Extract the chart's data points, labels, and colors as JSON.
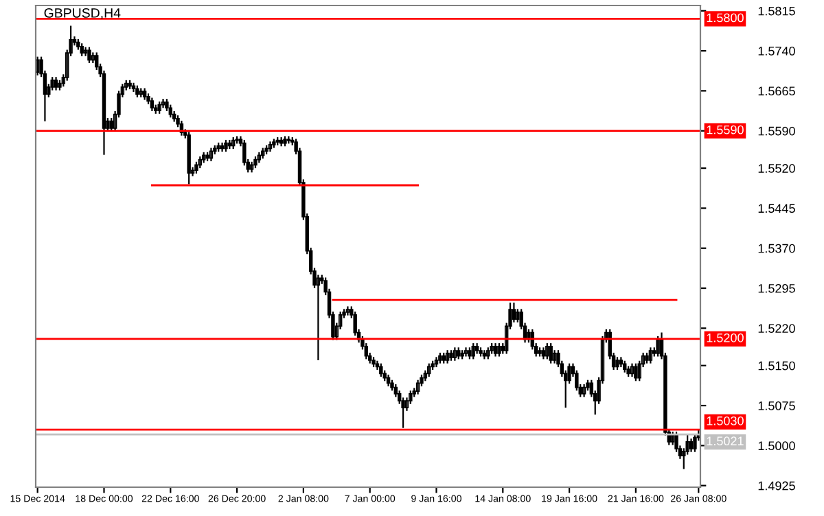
{
  "chart_data": {
    "type": "candlestick",
    "title": "GBPUSD,H4",
    "categories": [
      "15 Dec 2014",
      null,
      null,
      null,
      null,
      null,
      null,
      null,
      null,
      null,
      null,
      null,
      null,
      null,
      null,
      null,
      null,
      null,
      "18 Dec 00:00",
      null,
      null,
      null,
      null,
      null,
      null,
      null,
      null,
      null,
      null,
      null,
      null,
      null,
      null,
      null,
      null,
      null,
      "22 Dec 16:00",
      null,
      null,
      null,
      null,
      null,
      null,
      null,
      null,
      null,
      null,
      null,
      null,
      null,
      null,
      null,
      null,
      null,
      "26 Dec 20:00",
      null,
      null,
      null,
      null,
      null,
      null,
      null,
      null,
      null,
      null,
      null,
      null,
      null,
      null,
      null,
      null,
      null,
      "2 Jan 08:00",
      null,
      null,
      null,
      null,
      null,
      null,
      null,
      null,
      null,
      null,
      null,
      null,
      null,
      null,
      null,
      null,
      null,
      "7 Jan 00:00",
      null,
      null,
      null,
      null,
      null,
      null,
      null,
      null,
      null,
      null,
      null,
      null,
      null,
      null,
      null,
      null,
      null,
      "9 Jan 16:00",
      null,
      null,
      null,
      null,
      null,
      null,
      null,
      null,
      null,
      null,
      null,
      null,
      null,
      null,
      null,
      null,
      null,
      "14 Jan 08:00",
      null,
      null,
      null,
      null,
      null,
      null,
      null,
      null,
      null,
      null,
      null,
      null,
      null,
      null,
      null,
      null,
      null,
      "19 Jan 16:00",
      null,
      null,
      null,
      null,
      null,
      null,
      null,
      null,
      null,
      null,
      null,
      null,
      null,
      null,
      null,
      null,
      null,
      "21 Jan 16:00",
      null,
      null,
      null,
      null,
      null,
      null,
      null,
      null,
      null,
      null,
      null,
      null,
      null,
      null,
      null,
      null,
      "26 Jan 08:00"
    ],
    "ohlc": [
      [
        1.57,
        1.5729,
        1.5694,
        1.5723
      ],
      [
        1.5723,
        1.5729,
        1.5691,
        1.5697
      ],
      [
        1.5697,
        1.5703,
        1.5608,
        1.5659
      ],
      [
        1.5659,
        1.5678,
        1.5653,
        1.5672
      ],
      [
        1.5672,
        1.5691,
        1.5666,
        1.5685
      ],
      [
        1.5685,
        1.5691,
        1.5666,
        1.5672
      ],
      [
        1.5672,
        1.5685,
        1.5666,
        1.5679
      ],
      [
        1.5679,
        1.5696,
        1.5673,
        1.569
      ],
      [
        1.569,
        1.5742,
        1.5684,
        1.5736
      ],
      [
        1.5736,
        1.5787,
        1.573,
        1.5761
      ],
      [
        1.5761,
        1.5767,
        1.575,
        1.5756
      ],
      [
        1.5756,
        1.5762,
        1.5742,
        1.5748
      ],
      [
        1.5748,
        1.5754,
        1.573,
        1.5736
      ],
      [
        1.5736,
        1.5747,
        1.573,
        1.5741
      ],
      [
        1.5741,
        1.5747,
        1.5717,
        1.5723
      ],
      [
        1.5723,
        1.5737,
        1.5717,
        1.5731
      ],
      [
        1.5731,
        1.5737,
        1.5704,
        1.571
      ],
      [
        1.571,
        1.5716,
        1.5691,
        1.5697
      ],
      [
        1.5697,
        1.5703,
        1.5545,
        1.5595
      ],
      [
        1.5595,
        1.5614,
        1.5589,
        1.5608
      ],
      [
        1.5608,
        1.5614,
        1.5589,
        1.5595
      ],
      [
        1.5595,
        1.5627,
        1.5589,
        1.5621
      ],
      [
        1.5621,
        1.5665,
        1.5615,
        1.5659
      ],
      [
        1.5659,
        1.5678,
        1.5653,
        1.5672
      ],
      [
        1.5672,
        1.5685,
        1.5666,
        1.5679
      ],
      [
        1.5679,
        1.5685,
        1.5668,
        1.5674
      ],
      [
        1.5674,
        1.568,
        1.5663,
        1.5669
      ],
      [
        1.5669,
        1.5675,
        1.5653,
        1.5659
      ],
      [
        1.5659,
        1.567,
        1.5653,
        1.5664
      ],
      [
        1.5664,
        1.567,
        1.5648,
        1.5654
      ],
      [
        1.5654,
        1.566,
        1.564,
        1.5646
      ],
      [
        1.5646,
        1.5652,
        1.5627,
        1.5633
      ],
      [
        1.5633,
        1.5639,
        1.5622,
        1.5628
      ],
      [
        1.5628,
        1.5645,
        1.5622,
        1.5639
      ],
      [
        1.5639,
        1.565,
        1.5633,
        1.5644
      ],
      [
        1.5644,
        1.565,
        1.5627,
        1.5633
      ],
      [
        1.5633,
        1.5639,
        1.5615,
        1.5621
      ],
      [
        1.5621,
        1.5627,
        1.5607,
        1.5613
      ],
      [
        1.5613,
        1.5619,
        1.5597,
        1.5603
      ],
      [
        1.5603,
        1.5609,
        1.5581,
        1.5587
      ],
      [
        1.5587,
        1.5593,
        1.5576,
        1.5582
      ],
      [
        1.5582,
        1.5588,
        1.549,
        1.5511
      ],
      [
        1.5511,
        1.5522,
        1.5505,
        1.5516
      ],
      [
        1.5516,
        1.5532,
        1.551,
        1.5526
      ],
      [
        1.5526,
        1.5542,
        1.552,
        1.5536
      ],
      [
        1.5536,
        1.555,
        1.553,
        1.5544
      ],
      [
        1.5544,
        1.555,
        1.5533,
        1.5539
      ],
      [
        1.5539,
        1.5558,
        1.5533,
        1.5552
      ],
      [
        1.5552,
        1.5563,
        1.5546,
        1.5557
      ],
      [
        1.5557,
        1.5568,
        1.5551,
        1.5562
      ],
      [
        1.5562,
        1.5568,
        1.5551,
        1.5557
      ],
      [
        1.5557,
        1.5573,
        1.5551,
        1.5567
      ],
      [
        1.5567,
        1.5573,
        1.5556,
        1.5562
      ],
      [
        1.5562,
        1.5578,
        1.5556,
        1.5572
      ],
      [
        1.5572,
        1.558,
        1.5566,
        1.5574
      ],
      [
        1.5574,
        1.558,
        1.5561,
        1.5567
      ],
      [
        1.5567,
        1.5573,
        1.5525,
        1.5531
      ],
      [
        1.5531,
        1.5537,
        1.5512,
        1.5518
      ],
      [
        1.5518,
        1.5532,
        1.5512,
        1.5526
      ],
      [
        1.5526,
        1.5542,
        1.552,
        1.5536
      ],
      [
        1.5536,
        1.555,
        1.553,
        1.5544
      ],
      [
        1.5544,
        1.5558,
        1.5538,
        1.5552
      ],
      [
        1.5552,
        1.5563,
        1.5546,
        1.5557
      ],
      [
        1.5557,
        1.557,
        1.5551,
        1.5564
      ],
      [
        1.5564,
        1.5575,
        1.5558,
        1.5569
      ],
      [
        1.5569,
        1.5578,
        1.5563,
        1.5572
      ],
      [
        1.5572,
        1.5578,
        1.5561,
        1.5567
      ],
      [
        1.5567,
        1.558,
        1.5561,
        1.5574
      ],
      [
        1.5574,
        1.558,
        1.5566,
        1.5572
      ],
      [
        1.5572,
        1.5578,
        1.5563,
        1.5569
      ],
      [
        1.5569,
        1.5575,
        1.5546,
        1.5552
      ],
      [
        1.5552,
        1.5558,
        1.5487,
        1.5493
      ],
      [
        1.5493,
        1.5499,
        1.5423,
        1.5429
      ],
      [
        1.5429,
        1.5435,
        1.5359,
        1.5365
      ],
      [
        1.5365,
        1.5371,
        1.5321,
        1.5327
      ],
      [
        1.5327,
        1.5333,
        1.5295,
        1.5301
      ],
      [
        1.5301,
        1.532,
        1.516,
        1.5314
      ],
      [
        1.5314,
        1.532,
        1.5303,
        1.5309
      ],
      [
        1.5309,
        1.5315,
        1.5282,
        1.5288
      ],
      [
        1.5288,
        1.5294,
        1.5239,
        1.5245
      ],
      [
        1.5245,
        1.5251,
        1.5198,
        1.5204
      ],
      [
        1.5204,
        1.523,
        1.5198,
        1.5224
      ],
      [
        1.5224,
        1.5251,
        1.5218,
        1.5245
      ],
      [
        1.5245,
        1.5256,
        1.5239,
        1.525
      ],
      [
        1.525,
        1.5261,
        1.5244,
        1.5255
      ],
      [
        1.5255,
        1.5261,
        1.5239,
        1.5245
      ],
      [
        1.5245,
        1.5251,
        1.5206,
        1.5212
      ],
      [
        1.5212,
        1.5218,
        1.5193,
        1.5199
      ],
      [
        1.5199,
        1.5205,
        1.518,
        1.5186
      ],
      [
        1.5186,
        1.5192,
        1.5162,
        1.5168
      ],
      [
        1.5168,
        1.5174,
        1.5154,
        1.516
      ],
      [
        1.516,
        1.5166,
        1.5147,
        1.5153
      ],
      [
        1.5153,
        1.5159,
        1.5142,
        1.5148
      ],
      [
        1.5148,
        1.5154,
        1.5129,
        1.5135
      ],
      [
        1.5135,
        1.5141,
        1.5121,
        1.5127
      ],
      [
        1.5127,
        1.5133,
        1.5111,
        1.5117
      ],
      [
        1.5117,
        1.5123,
        1.5103,
        1.5109
      ],
      [
        1.5109,
        1.5115,
        1.5091,
        1.5097
      ],
      [
        1.5097,
        1.5103,
        1.5078,
        1.5084
      ],
      [
        1.5084,
        1.509,
        1.5033,
        1.5071
      ],
      [
        1.5071,
        1.509,
        1.5065,
        1.5084
      ],
      [
        1.5084,
        1.5103,
        1.5078,
        1.5097
      ],
      [
        1.5097,
        1.5108,
        1.5091,
        1.5102
      ],
      [
        1.5102,
        1.5123,
        1.5096,
        1.5117
      ],
      [
        1.5117,
        1.5133,
        1.5111,
        1.5127
      ],
      [
        1.5127,
        1.5141,
        1.5121,
        1.5135
      ],
      [
        1.5135,
        1.5154,
        1.5129,
        1.5148
      ],
      [
        1.5148,
        1.5159,
        1.5142,
        1.5153
      ],
      [
        1.5153,
        1.5166,
        1.5147,
        1.516
      ],
      [
        1.516,
        1.5174,
        1.5154,
        1.5168
      ],
      [
        1.5168,
        1.5174,
        1.5154,
        1.516
      ],
      [
        1.516,
        1.5179,
        1.5154,
        1.5173
      ],
      [
        1.5173,
        1.5179,
        1.5159,
        1.5165
      ],
      [
        1.5165,
        1.5184,
        1.5159,
        1.5178
      ],
      [
        1.5178,
        1.5184,
        1.5162,
        1.5168
      ],
      [
        1.5168,
        1.5179,
        1.5162,
        1.5173
      ],
      [
        1.5173,
        1.5184,
        1.5167,
        1.5178
      ],
      [
        1.5178,
        1.5184,
        1.5162,
        1.5168
      ],
      [
        1.5168,
        1.5192,
        1.5162,
        1.5186
      ],
      [
        1.5186,
        1.5192,
        1.5172,
        1.5178
      ],
      [
        1.5178,
        1.5184,
        1.5167,
        1.5173
      ],
      [
        1.5173,
        1.5179,
        1.5162,
        1.5168
      ],
      [
        1.5168,
        1.5184,
        1.5162,
        1.5178
      ],
      [
        1.5178,
        1.5192,
        1.5172,
        1.5186
      ],
      [
        1.5186,
        1.5192,
        1.5167,
        1.5173
      ],
      [
        1.5173,
        1.5192,
        1.5167,
        1.5186
      ],
      [
        1.5186,
        1.5192,
        1.5172,
        1.5178
      ],
      [
        1.5178,
        1.523,
        1.5172,
        1.5224
      ],
      [
        1.5224,
        1.5268,
        1.5218,
        1.5255
      ],
      [
        1.5255,
        1.5268,
        1.5231,
        1.5237
      ],
      [
        1.5237,
        1.5256,
        1.5231,
        1.525
      ],
      [
        1.525,
        1.5256,
        1.5218,
        1.5224
      ],
      [
        1.5224,
        1.523,
        1.5193,
        1.5199
      ],
      [
        1.5199,
        1.5218,
        1.5193,
        1.5212
      ],
      [
        1.5212,
        1.5218,
        1.518,
        1.5186
      ],
      [
        1.5186,
        1.5192,
        1.5167,
        1.5173
      ],
      [
        1.5173,
        1.5184,
        1.5167,
        1.5178
      ],
      [
        1.5178,
        1.5184,
        1.5162,
        1.5168
      ],
      [
        1.5168,
        1.5192,
        1.5162,
        1.5186
      ],
      [
        1.5186,
        1.5192,
        1.5154,
        1.516
      ],
      [
        1.516,
        1.5179,
        1.5154,
        1.5173
      ],
      [
        1.5173,
        1.5179,
        1.5147,
        1.5153
      ],
      [
        1.5153,
        1.5159,
        1.5129,
        1.5135
      ],
      [
        1.5135,
        1.5141,
        1.5071,
        1.5122
      ],
      [
        1.5122,
        1.5154,
        1.5116,
        1.5148
      ],
      [
        1.5148,
        1.5154,
        1.5129,
        1.5135
      ],
      [
        1.5135,
        1.5141,
        1.5103,
        1.5109
      ],
      [
        1.5109,
        1.5115,
        1.5091,
        1.5097
      ],
      [
        1.5097,
        1.5115,
        1.5091,
        1.5109
      ],
      [
        1.5109,
        1.5123,
        1.5103,
        1.5117
      ],
      [
        1.5117,
        1.5123,
        1.5091,
        1.5097
      ],
      [
        1.5097,
        1.5103,
        1.5058,
        1.5084
      ],
      [
        1.5084,
        1.5128,
        1.5078,
        1.5122
      ],
      [
        1.5122,
        1.5205,
        1.5116,
        1.5199
      ],
      [
        1.5199,
        1.5218,
        1.5193,
        1.5212
      ],
      [
        1.5212,
        1.5218,
        1.5162,
        1.5168
      ],
      [
        1.5168,
        1.5174,
        1.5142,
        1.5148
      ],
      [
        1.5148,
        1.5166,
        1.5142,
        1.516
      ],
      [
        1.516,
        1.5166,
        1.5147,
        1.5153
      ],
      [
        1.5153,
        1.5159,
        1.5137,
        1.5143
      ],
      [
        1.5143,
        1.5149,
        1.5129,
        1.5135
      ],
      [
        1.5135,
        1.5154,
        1.5129,
        1.5148
      ],
      [
        1.5148,
        1.5154,
        1.5121,
        1.5127
      ],
      [
        1.5127,
        1.5159,
        1.5121,
        1.5153
      ],
      [
        1.5153,
        1.5174,
        1.5147,
        1.5168
      ],
      [
        1.5168,
        1.5174,
        1.5154,
        1.516
      ],
      [
        1.516,
        1.5184,
        1.5154,
        1.5178
      ],
      [
        1.5178,
        1.5184,
        1.5167,
        1.5173
      ],
      [
        1.5173,
        1.5205,
        1.5167,
        1.5199
      ],
      [
        1.5199,
        1.5212,
        1.5162,
        1.5168
      ],
      [
        1.5168,
        1.5174,
        1.5019,
        1.5025
      ],
      [
        1.5025,
        1.5031,
        1.5001,
        1.5007
      ],
      [
        1.5007,
        1.5026,
        1.5001,
        1.502
      ],
      [
        1.502,
        1.5026,
        1.4988,
        1.4994
      ],
      [
        1.4994,
        1.5,
        1.4975,
        1.4981
      ],
      [
        1.4981,
        1.4995,
        1.4956,
        1.4989
      ],
      [
        1.4989,
        1.502,
        1.4983,
        1.5007
      ],
      [
        1.5007,
        1.5013,
        1.4988,
        1.4994
      ],
      [
        1.4994,
        1.5021,
        1.4988,
        1.5015
      ],
      [
        1.5015,
        1.5031,
        1.5009,
        1.5021
      ]
    ],
    "series": [
      {
        "type": "line",
        "color": "#ff0000",
        "values": [
          null,
          null,
          null,
          null,
          null,
          null,
          null,
          null,
          null,
          null,
          null,
          null,
          null,
          null,
          null,
          null,
          null,
          null,
          null,
          null,
          null,
          null,
          null,
          null,
          null,
          null,
          null,
          null,
          null,
          null,
          null,
          1.5488,
          1.5488,
          1.5488,
          1.5488,
          1.5488,
          1.5488,
          1.5488,
          1.5488,
          1.5488,
          1.5488,
          1.5488,
          1.5488,
          1.5488,
          1.5488,
          1.5488,
          1.5488,
          1.5488,
          1.5488,
          1.5488,
          1.5488,
          1.5488,
          1.5488,
          1.5488,
          1.5488,
          1.5488,
          1.5488,
          1.5488,
          1.5488,
          1.5488,
          1.5488,
          1.5488,
          1.5488,
          1.5488,
          1.5488,
          1.5488,
          1.5488,
          1.5488,
          1.5488,
          1.5488,
          1.5488,
          1.5488,
          1.5488,
          1.5488,
          1.5488,
          1.5488,
          1.5488,
          1.5488,
          1.5488,
          1.5488,
          1.5488,
          1.5488,
          1.5488,
          1.5488,
          1.5488,
          1.5488,
          1.5488,
          1.5488,
          1.5488,
          1.5488,
          1.5488,
          1.5488,
          1.5488,
          1.5488,
          1.5488,
          1.5488,
          1.5488,
          1.5488,
          1.5488,
          1.5488,
          1.5488,
          1.5488,
          1.5488,
          1.5488,
          null,
          null,
          null,
          null,
          null,
          null,
          null,
          null,
          null,
          null,
          null,
          null,
          null,
          null,
          null,
          null,
          null,
          null,
          null,
          null,
          null,
          null,
          null,
          null,
          null,
          null,
          null,
          null,
          null,
          null,
          null,
          null,
          null,
          null,
          null,
          null,
          null,
          null,
          null,
          null,
          null,
          null,
          null,
          null,
          null,
          null,
          null,
          null,
          null,
          null,
          null,
          null,
          null,
          null,
          null,
          null,
          null,
          null,
          null,
          null,
          null,
          null,
          null,
          null,
          null,
          null,
          null,
          null,
          null,
          null,
          null,
          null,
          null,
          null,
          null,
          null
        ]
      },
      {
        "type": "line",
        "color": "#ff0000",
        "values": [
          null,
          null,
          null,
          null,
          null,
          null,
          null,
          null,
          null,
          null,
          null,
          null,
          null,
          null,
          null,
          null,
          null,
          null,
          null,
          null,
          null,
          null,
          null,
          null,
          null,
          null,
          null,
          null,
          null,
          null,
          null,
          null,
          null,
          null,
          null,
          null,
          null,
          null,
          null,
          null,
          null,
          null,
          null,
          null,
          null,
          null,
          null,
          null,
          null,
          null,
          null,
          null,
          null,
          null,
          null,
          null,
          null,
          null,
          null,
          null,
          null,
          null,
          null,
          null,
          null,
          null,
          null,
          null,
          null,
          null,
          null,
          null,
          null,
          null,
          null,
          null,
          null,
          null,
          null,
          null,
          1.5273,
          1.5273,
          1.5273,
          1.5273,
          1.5273,
          1.5273,
          1.5273,
          1.5273,
          1.5273,
          1.5273,
          1.5273,
          1.5273,
          1.5273,
          1.5273,
          1.5273,
          1.5273,
          1.5273,
          1.5273,
          1.5273,
          1.5273,
          1.5273,
          1.5273,
          1.5273,
          1.5273,
          1.5273,
          1.5273,
          1.5273,
          1.5273,
          1.5273,
          1.5273,
          1.5273,
          1.5273,
          1.5273,
          1.5273,
          1.5273,
          1.5273,
          1.5273,
          1.5273,
          1.5273,
          1.5273,
          1.5273,
          1.5273,
          1.5273,
          1.5273,
          1.5273,
          1.5273,
          1.5273,
          1.5273,
          1.5273,
          1.5273,
          1.5273,
          1.5273,
          1.5273,
          1.5273,
          1.5273,
          1.5273,
          1.5273,
          1.5273,
          1.5273,
          1.5273,
          1.5273,
          1.5273,
          1.5273,
          1.5273,
          1.5273,
          1.5273,
          1.5273,
          1.5273,
          1.5273,
          1.5273,
          1.5273,
          1.5273,
          1.5273,
          1.5273,
          1.5273,
          1.5273,
          1.5273,
          1.5273,
          1.5273,
          1.5273,
          1.5273,
          1.5273,
          1.5273,
          1.5273,
          1.5273,
          1.5273,
          1.5273,
          1.5273,
          1.5273,
          1.5273,
          1.5273,
          1.5273,
          1.5273,
          1.5273,
          null,
          null,
          null,
          null,
          null,
          null
        ]
      }
    ],
    "ylim": [
      1.4922,
      1.5825
    ],
    "yticks": [
      {
        "value": 1.4925,
        "label": "1.4925"
      },
      {
        "value": 1.5,
        "label": "1.5000"
      },
      {
        "value": 1.5075,
        "label": "1.5075"
      },
      {
        "value": 1.515,
        "label": "1.5150"
      },
      {
        "value": 1.522,
        "label": "1.5220"
      },
      {
        "value": 1.5295,
        "label": "1.5295"
      },
      {
        "value": 1.537,
        "label": "1.5370"
      },
      {
        "value": 1.5445,
        "label": "1.5445"
      },
      {
        "value": 1.552,
        "label": "1.5520"
      },
      {
        "value": 1.559,
        "label": "1.5590"
      },
      {
        "value": 1.5665,
        "label": "1.5665"
      },
      {
        "value": 1.574,
        "label": "1.5740"
      },
      {
        "value": 1.5815,
        "label": "1.5815"
      }
    ],
    "ref_lines": [
      {
        "axis": "y",
        "value": 1.58,
        "label": "1.5800",
        "color": "#ff0000"
      },
      {
        "axis": "y",
        "value": 1.559,
        "label": "1.5590",
        "color": "#ff0000"
      },
      {
        "axis": "y",
        "value": 1.52,
        "label": "1.5200",
        "color": "#ff0000"
      },
      {
        "axis": "y",
        "value": 1.503,
        "label": "1.5030",
        "color": "#ff0000"
      },
      {
        "axis": "y",
        "value": 1.5021,
        "label": "1.5021",
        "color": "#c0c0c0"
      }
    ],
    "grid": false,
    "legend": false
  }
}
